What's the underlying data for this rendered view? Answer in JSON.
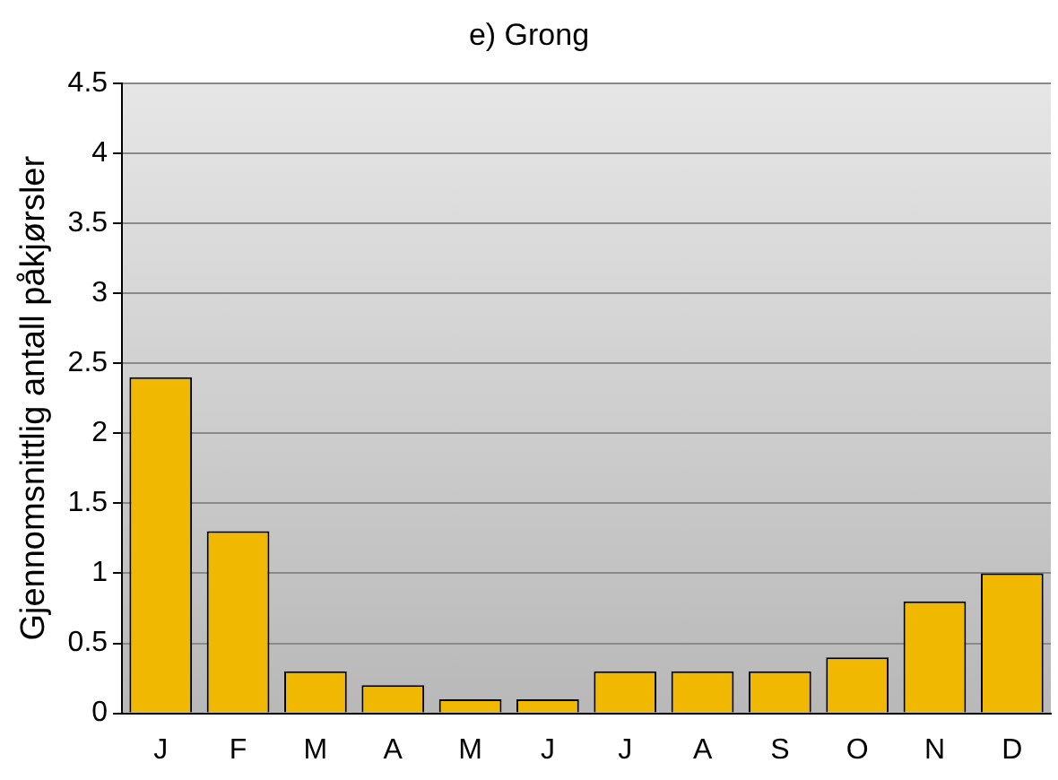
{
  "chart_data": {
    "type": "bar",
    "title": "e) Grong",
    "ylabel": "Gjennomsnittlig antall påkjørsler",
    "categories": [
      "J",
      "F",
      "M",
      "A",
      "M",
      "J",
      "J",
      "A",
      "S",
      "O",
      "N",
      "D"
    ],
    "values": [
      2.4,
      1.3,
      0.3,
      0.2,
      0.1,
      0.1,
      0.3,
      0.3,
      0.3,
      0.4,
      0.8,
      1.0
    ],
    "color": "#f0b800",
    "ylim": [
      0,
      4.5
    ],
    "yticks": [
      0,
      0.5,
      1,
      1.5,
      2,
      2.5,
      3,
      3.5,
      4,
      4.5
    ],
    "grid": "y",
    "legend": false
  }
}
